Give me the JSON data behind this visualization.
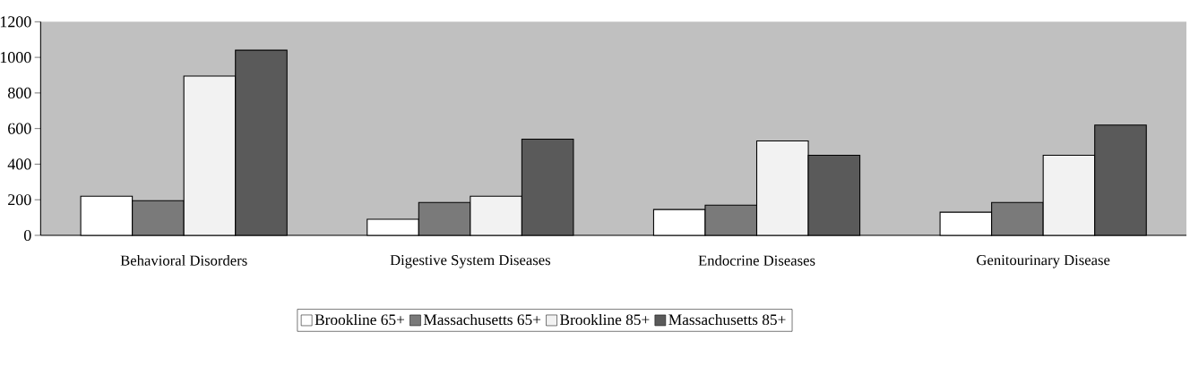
{
  "chart_data": {
    "type": "bar",
    "categories": [
      "Behavioral Disorders",
      "Digestive System Diseases",
      "Endocrine Diseases",
      "Genitourinary Disease"
    ],
    "series": [
      {
        "name": "Brookline 65+",
        "color": "#ffffff",
        "values": [
          220,
          90,
          145,
          130
        ]
      },
      {
        "name": "Massachusetts 65+",
        "color": "#7a7a7a",
        "values": [
          195,
          185,
          170,
          185
        ]
      },
      {
        "name": "Brookline 85+",
        "color": "#f2f2f2",
        "values": [
          895,
          220,
          530,
          450
        ]
      },
      {
        "name": "Massachusetts 85+",
        "color": "#5a5a5a",
        "values": [
          1040,
          540,
          450,
          620
        ]
      }
    ],
    "ylim": [
      0,
      1200
    ],
    "yticks": [
      0,
      200,
      400,
      600,
      800,
      1000,
      1200
    ],
    "grid": false,
    "legend": "bottom"
  }
}
